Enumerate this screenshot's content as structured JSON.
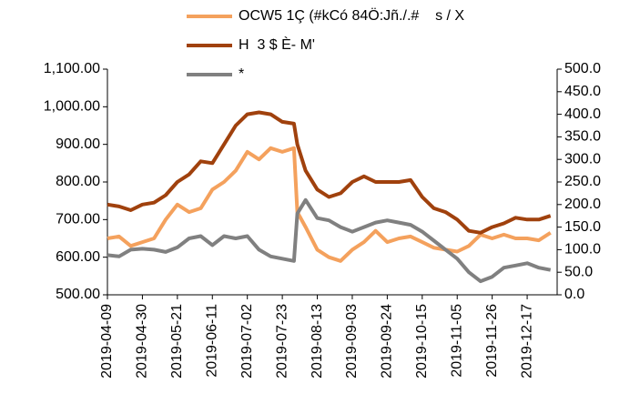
{
  "chart_data": {
    "type": "line",
    "x": [
      "2019-04-09",
      "2019-04-16",
      "2019-04-23",
      "2019-04-30",
      "2019-05-07",
      "2019-05-14",
      "2019-05-21",
      "2019-05-28",
      "2019-06-04",
      "2019-06-11",
      "2019-06-18",
      "2019-06-25",
      "2019-07-02",
      "2019-07-09",
      "2019-07-16",
      "2019-07-23",
      "2019-07-30",
      "2019-08-01",
      "2019-08-06",
      "2019-08-13",
      "2019-08-20",
      "2019-08-27",
      "2019-09-03",
      "2019-09-10",
      "2019-09-17",
      "2019-09-24",
      "2019-10-01",
      "2019-10-08",
      "2019-10-15",
      "2019-10-22",
      "2019-10-29",
      "2019-11-05",
      "2019-11-12",
      "2019-11-19",
      "2019-11-26",
      "2019-12-03",
      "2019-12-10",
      "2019-12-17",
      "2019-12-24",
      "2019-12-31"
    ],
    "series": [
      {
        "name": "OCW5 1Ç (#kCó 84Ö:Jñ./.#    s / X",
        "color": "#f4a15d",
        "values": [
          650,
          655,
          630,
          640,
          650,
          700,
          740,
          720,
          730,
          780,
          800,
          830,
          880,
          860,
          890,
          880,
          890,
          720,
          680,
          620,
          600,
          590,
          620,
          640,
          670,
          640,
          650,
          655,
          640,
          625,
          620,
          615,
          630,
          660,
          650,
          660,
          650,
          650,
          645,
          665
        ]
      },
      {
        "name": "H  3 $ È- M'",
        "color": "#a0410d",
        "values": [
          740,
          735,
          725,
          740,
          745,
          765,
          800,
          820,
          855,
          850,
          900,
          950,
          980,
          985,
          980,
          960,
          955,
          900,
          830,
          780,
          760,
          770,
          800,
          815,
          800,
          800,
          800,
          805,
          760,
          730,
          720,
          700,
          670,
          665,
          680,
          690,
          705,
          700,
          700,
          710
        ]
      },
      {
        "name": "*",
        "color": "#808080",
        "axis": "y2",
        "values": [
          88,
          85,
          100,
          102,
          100,
          95,
          105,
          125,
          130,
          110,
          130,
          125,
          130,
          100,
          85,
          80,
          75,
          180,
          210,
          170,
          165,
          150,
          140,
          150,
          160,
          165,
          160,
          155,
          140,
          120,
          100,
          80,
          50,
          30,
          40,
          60,
          65,
          70,
          60,
          55
        ]
      }
    ],
    "xlim": [
      "2019-04-09",
      "2020-01-04"
    ],
    "xticks": [
      "2019-04-09",
      "2019-04-30",
      "2019-05-21",
      "2019-06-11",
      "2019-07-02",
      "2019-07-23",
      "2019-08-13",
      "2019-09-03",
      "2019-09-24",
      "2019-10-15",
      "2019-11-05",
      "2019-11-26",
      "2019-12-17"
    ],
    "ylim": [
      500,
      1100
    ],
    "yticks": [
      {
        "value": 500,
        "label": "500.00"
      },
      {
        "value": 600,
        "label": "600.00"
      },
      {
        "value": 700,
        "label": "700.00"
      },
      {
        "value": 800,
        "label": "800.00"
      },
      {
        "value": 900,
        "label": "900.00"
      },
      {
        "value": 1000,
        "label": "1,000.00"
      },
      {
        "value": 1100,
        "label": "1,100.00"
      }
    ],
    "y2lim": [
      0,
      500
    ],
    "y2ticks": [
      {
        "value": 0,
        "label": "0.0"
      },
      {
        "value": 50,
        "label": "50.0"
      },
      {
        "value": 100,
        "label": "100.0"
      },
      {
        "value": 150,
        "label": "150.0"
      },
      {
        "value": 200,
        "label": "200.0"
      },
      {
        "value": 250,
        "label": "250.0"
      },
      {
        "value": 300,
        "label": "300.0"
      },
      {
        "value": 350,
        "label": "350.0"
      },
      {
        "value": 400,
        "label": "400.0"
      },
      {
        "value": 450,
        "label": "450.0"
      },
      {
        "value": 500,
        "label": "500.0"
      }
    ]
  }
}
